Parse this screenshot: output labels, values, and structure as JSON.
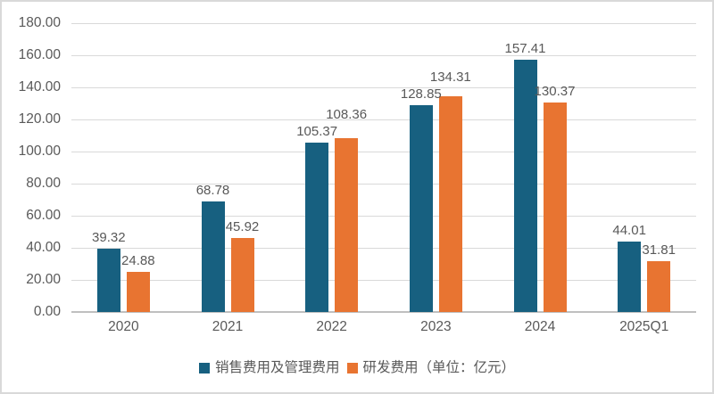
{
  "chart_data": {
    "type": "bar",
    "title": "",
    "xlabel": "",
    "ylabel": "",
    "categories": [
      "2020",
      "2021",
      "2022",
      "2023",
      "2024",
      "2025Q1"
    ],
    "series": [
      {
        "name": "销售费用及管理费用",
        "color": "#176080",
        "values": [
          39.32,
          68.78,
          105.37,
          128.85,
          157.41,
          44.01
        ]
      },
      {
        "name": "研发费用（单位：亿元）",
        "color": "#E87431",
        "values": [
          24.88,
          45.92,
          108.36,
          134.31,
          130.37,
          31.81
        ]
      }
    ],
    "value_labels": [
      [
        "39.32",
        "68.78",
        "105.37",
        "128.85",
        "157.41",
        "44.01"
      ],
      [
        "24.88",
        "45.92",
        "108.36",
        "134.31",
        "130.37",
        "31.81"
      ]
    ],
    "y_ticks": [
      "0.00",
      "20.00",
      "40.00",
      "60.00",
      "80.00",
      "100.00",
      "120.00",
      "140.00",
      "160.00",
      "180.00"
    ],
    "ylim": [
      0,
      180
    ],
    "grid": true,
    "legend_position": "bottom"
  },
  "colors": {
    "grid": "#D9D9D9",
    "axis": "#BFBFBF",
    "text": "#595959",
    "border": "#D9D9D9",
    "background": "#FFFFFF"
  }
}
